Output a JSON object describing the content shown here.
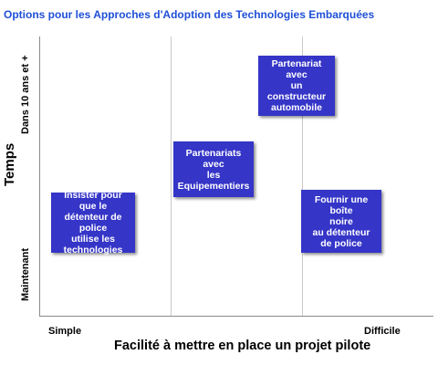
{
  "title": "Options pour les Approches d'Adoption des Technologies Embarquées",
  "axes": {
    "y_label": "Temps",
    "y_top": "Dans 10 ans et +",
    "y_bottom": "Maintenant",
    "x_label": "Facilité à mettre en place un projet pilote",
    "x_left": "Simple",
    "x_right": "Difficile"
  },
  "boxes": [
    {
      "text": "Insister pour\nque le\ndétenteur de police\nutilise les\ntechnologies"
    },
    {
      "text": "Partenariats avec\nles\nEquipementiers"
    },
    {
      "text": "Partenariat avec\nun\nconstructeur\nautomobile"
    },
    {
      "text": "Fournir une boîte\nnoire\nau détenteur\nde police"
    }
  ]
}
